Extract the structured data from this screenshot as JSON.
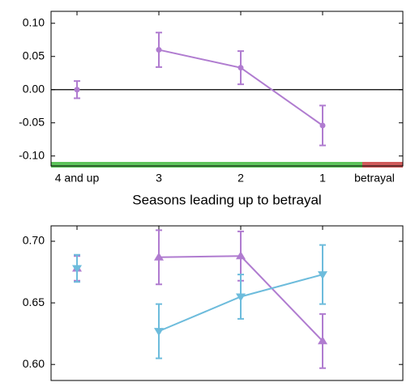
{
  "chart_data": [
    {
      "type": "line",
      "xlabel": "Seasons leading up to betrayal",
      "categories": [
        "4 and up",
        "3",
        "2",
        "1",
        "betrayal"
      ],
      "series": [
        {
          "color": "#b07cd0",
          "marker": "circle",
          "values": [
            0.0,
            0.06,
            0.033,
            -0.054,
            null
          ],
          "errors": [
            0.013,
            0.026,
            0.025,
            0.03,
            null
          ]
        }
      ],
      "ylim": [
        -0.115,
        0.118
      ],
      "yticks": [
        {
          "value": -0.1,
          "label": "-0.10"
        },
        -0.05,
        {
          "value": 0,
          "label": "0.00"
        },
        0.05,
        {
          "value": 0.1,
          "label": "0.10"
        }
      ],
      "hline": 0
    },
    {
      "type": "line",
      "categories": [
        null,
        null,
        null,
        null
      ],
      "series": [
        {
          "color": "#b07cd0",
          "marker": "triangle-up",
          "values": [
            0.678,
            0.687,
            0.688,
            0.619
          ],
          "errors": [
            0.01,
            0.022,
            0.02,
            0.022
          ]
        },
        {
          "color": "#6dbcdc",
          "marker": "triangle-down",
          "values": [
            0.678,
            0.627,
            0.655,
            0.673
          ],
          "errors": [
            0.011,
            0.022,
            0.018,
            0.024
          ]
        }
      ],
      "ylim": [
        0.587,
        0.7125
      ],
      "yticks": [
        {
          "value": 0.6,
          "label": "0.60"
        },
        {
          "value": 0.65,
          "label": "0.65"
        },
        {
          "value": 0.7,
          "label": "0.70"
        }
      ]
    }
  ]
}
